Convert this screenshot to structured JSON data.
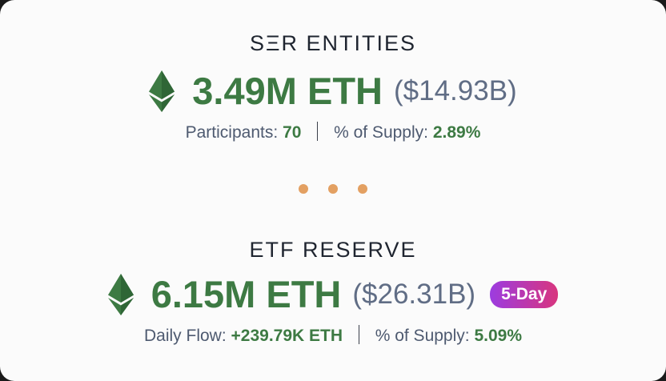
{
  "colors": {
    "eth_green": "#3d7a43",
    "usd_gray": "#606d85",
    "dot_orange": "#e3a062",
    "badge_gradient": [
      "#9c3ce0",
      "#d8357e"
    ]
  },
  "entities": {
    "title": "SΞR ENTITIES",
    "icon": "ethereum-icon",
    "amount": "3.49M ETH",
    "usd_value": "($14.93B)",
    "participants_label": "Participants:",
    "participants_value": "70",
    "supply_label": "% of Supply:",
    "supply_value": "2.89%"
  },
  "separator": {
    "icon": "ellipsis-dots",
    "dot_count": 3
  },
  "etf": {
    "title": "ETF RESERVE",
    "icon": "ethereum-icon",
    "amount": "6.15M ETH",
    "usd_value": "($26.31B)",
    "badge": "5-Day",
    "flow_label": "Daily Flow:",
    "flow_value": "+239.79K ETH",
    "supply_label": "% of Supply:",
    "supply_value": "5.09%"
  }
}
